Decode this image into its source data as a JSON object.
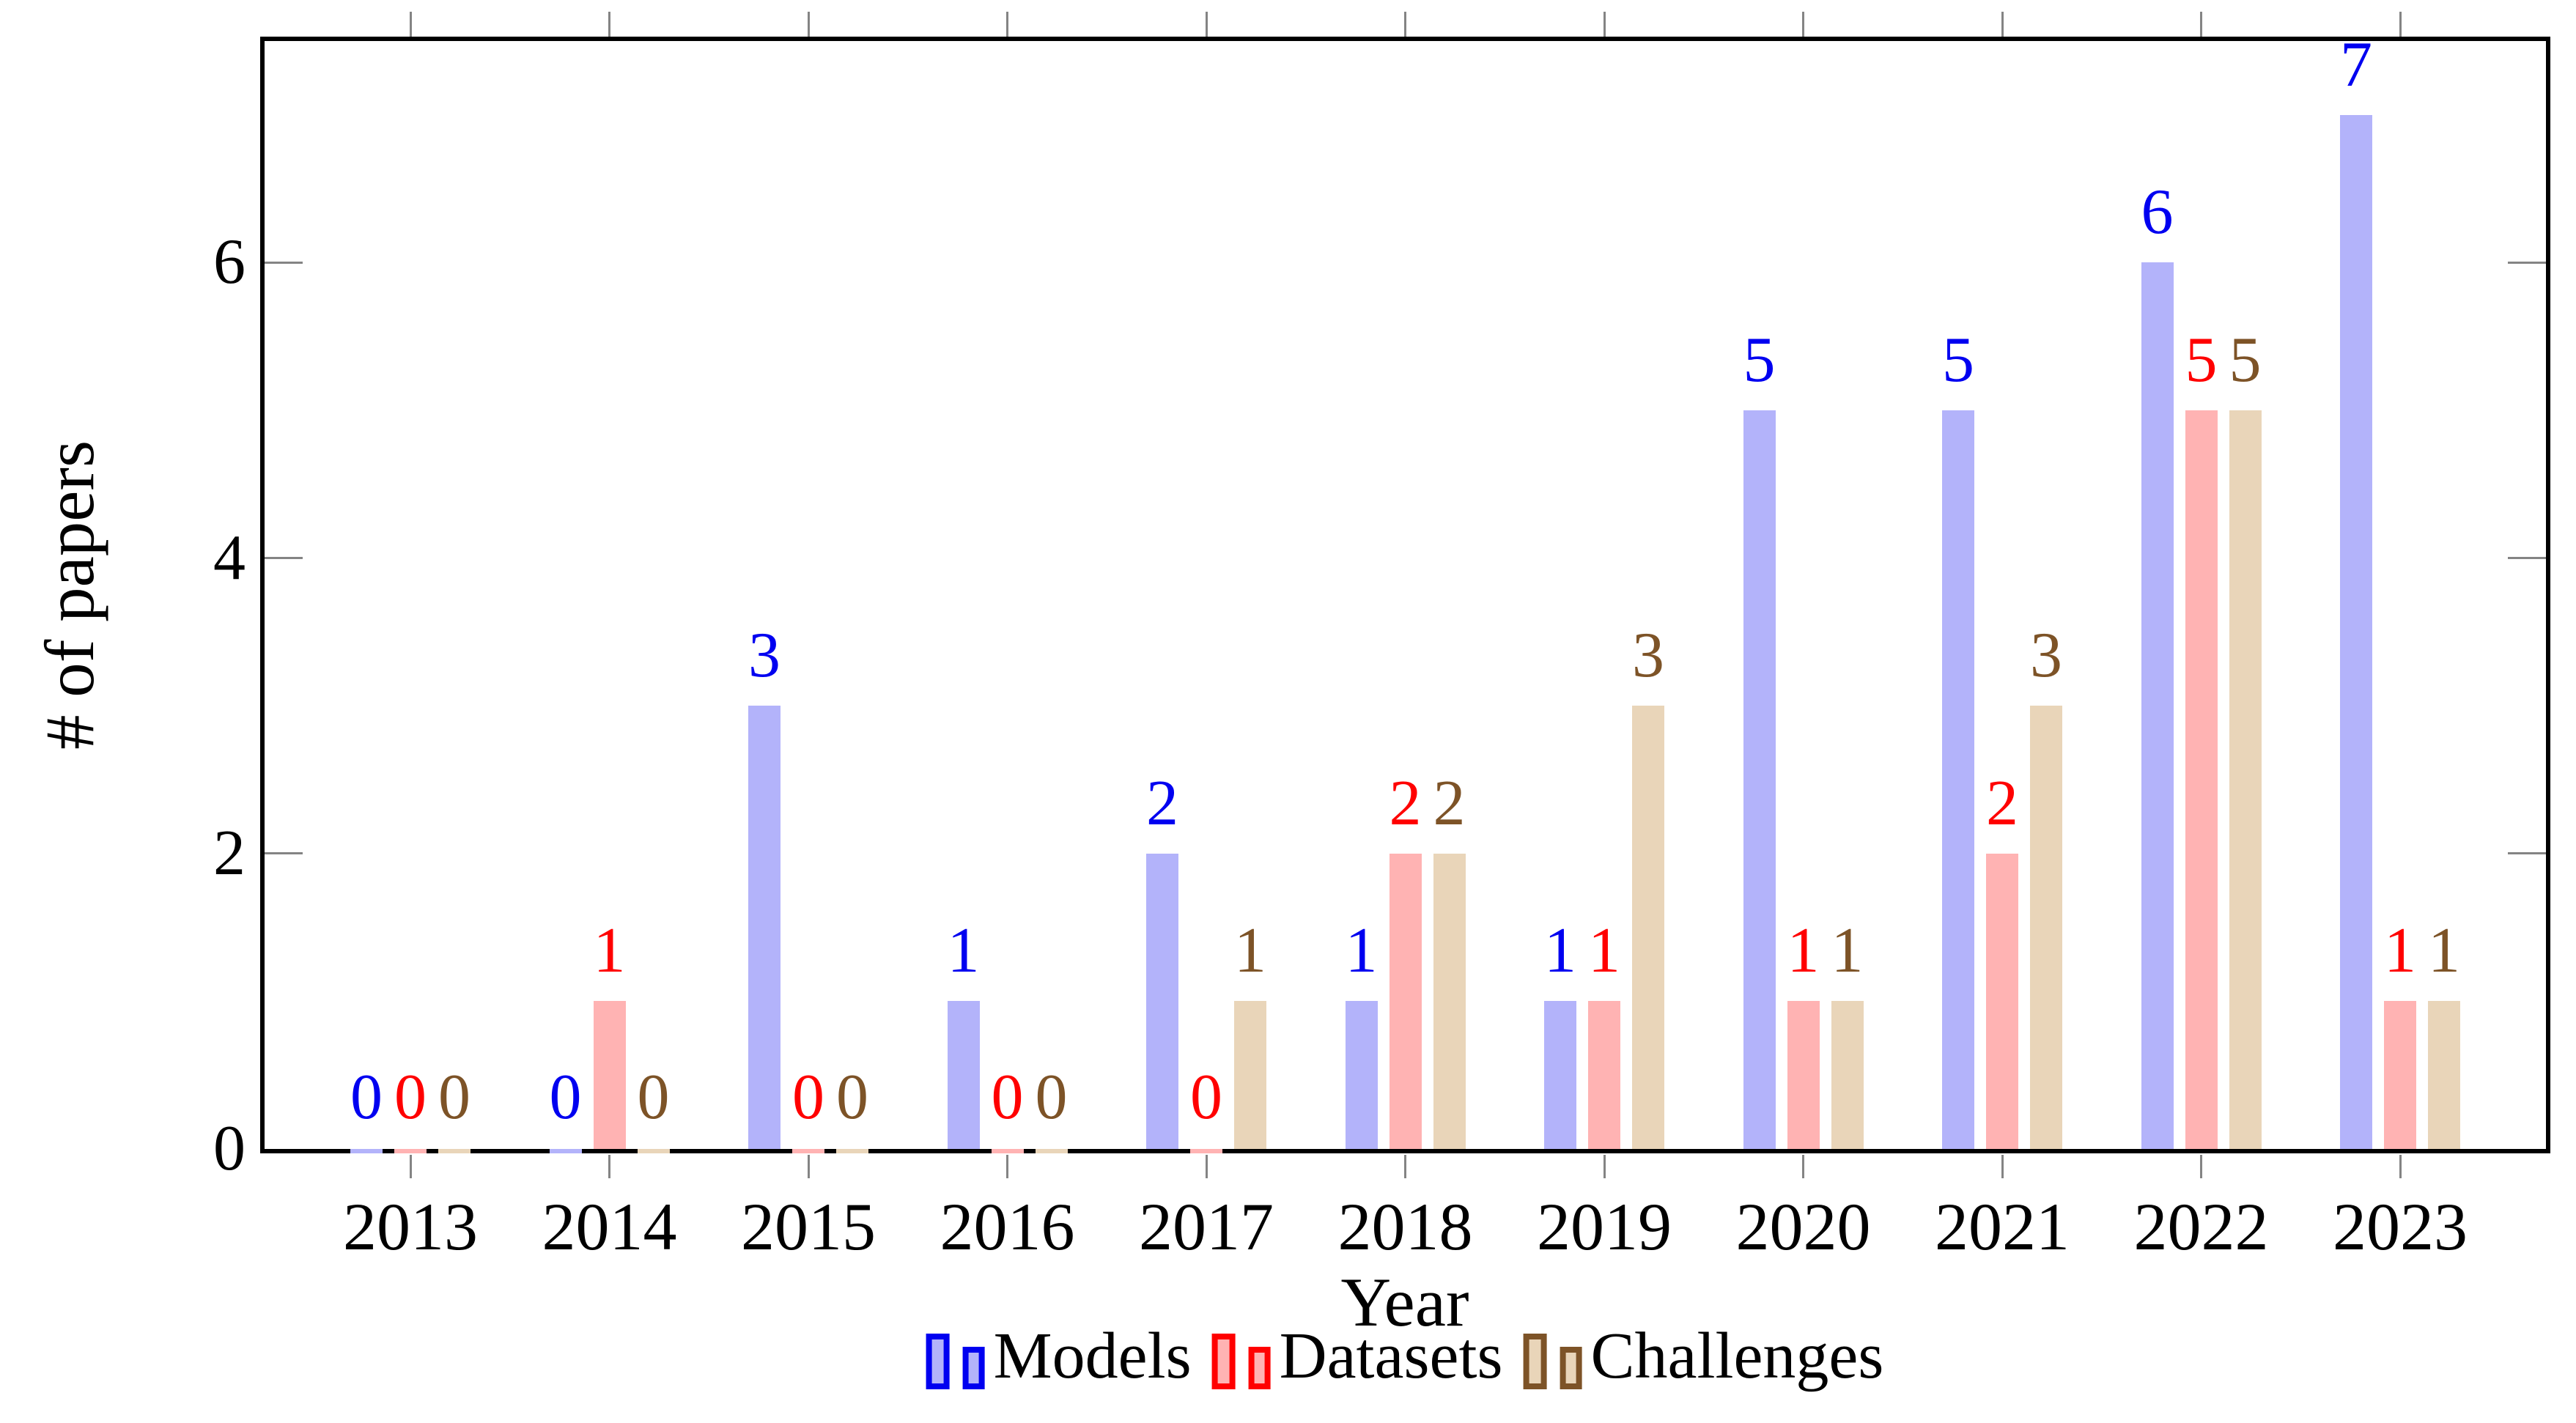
{
  "chart_data": {
    "type": "bar",
    "title": "",
    "xlabel": "Year",
    "ylabel": "# of papers",
    "categories": [
      "2013",
      "2014",
      "2015",
      "2016",
      "2017",
      "2018",
      "2019",
      "2020",
      "2021",
      "2022",
      "2023"
    ],
    "series": [
      {
        "name": "Models",
        "values": [
          0,
          0,
          3,
          1,
          2,
          1,
          1,
          5,
          5,
          6,
          7
        ],
        "fill": "#b3b3fa",
        "stroke": "#0000f0"
      },
      {
        "name": "Datasets",
        "values": [
          0,
          1,
          0,
          0,
          0,
          2,
          1,
          1,
          2,
          5,
          1
        ],
        "fill": "#ffb3b3",
        "stroke": "#ff0000"
      },
      {
        "name": "Challenges",
        "values": [
          0,
          0,
          0,
          0,
          1,
          2,
          3,
          1,
          3,
          5,
          1
        ],
        "fill": "#e9d5b9",
        "stroke": "#7d5327"
      }
    ],
    "y_ticks": [
      0,
      2,
      4,
      6
    ],
    "ylim": [
      0,
      7.5
    ],
    "grid": false,
    "bar_value_labels": true,
    "legend_position": "below",
    "axis_color": "#000000",
    "tick_color": "#848484"
  }
}
